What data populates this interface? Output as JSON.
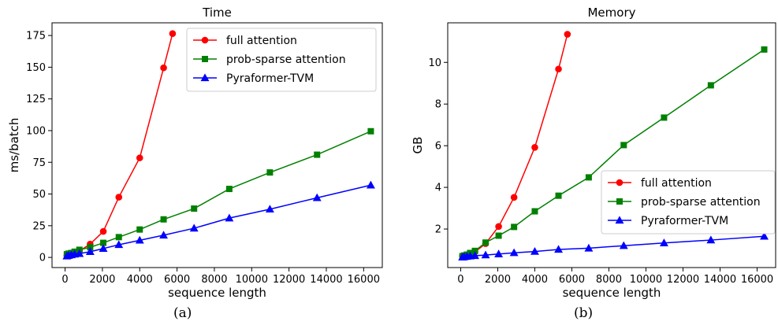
{
  "chart_data": [
    {
      "type": "line",
      "title": "Time",
      "xlabel": "sequence length",
      "ylabel": "ms/batch",
      "xlim": [
        -700,
        17000
      ],
      "ylim": [
        -8,
        185
      ],
      "xticks": [
        0,
        2000,
        4000,
        6000,
        8000,
        10000,
        12000,
        14000,
        16000
      ],
      "yticks": [
        0,
        25,
        50,
        75,
        100,
        125,
        150,
        175
      ],
      "legend_position": "top-right",
      "caption": "(a)",
      "series": [
        {
          "name": "full attention",
          "color": "#ff0000",
          "marker": "circle",
          "x": [
            96,
            192,
            336,
            512,
            768,
            1344,
            2048,
            2880,
            4000,
            5280,
            5760
          ],
          "y": [
            1.5,
            2,
            2.5,
            3.5,
            5,
            10.5,
            20.5,
            47.5,
            78.5,
            149.5,
            176.5
          ]
        },
        {
          "name": "prob-sparse attention",
          "color": "#008000",
          "marker": "square",
          "x": [
            96,
            192,
            336,
            512,
            768,
            1344,
            2048,
            2880,
            4000,
            5280,
            6912,
            8800,
            10976,
            13504,
            16384
          ],
          "y": [
            2.5,
            3,
            3.5,
            4.5,
            6,
            8,
            11.5,
            16,
            22,
            30,
            38.5,
            54,
            67,
            81,
            99.5
          ]
        },
        {
          "name": "Pyraformer-TVM",
          "color": "#0000ff",
          "marker": "triangle",
          "x": [
            96,
            192,
            336,
            512,
            768,
            1344,
            2048,
            2880,
            4000,
            5280,
            6912,
            8800,
            10976,
            13504,
            16384
          ],
          "y": [
            1,
            1.5,
            2,
            2.5,
            3,
            4.5,
            7,
            10,
            13.5,
            17.5,
            23,
            31,
            38,
            47,
            57
          ]
        }
      ]
    },
    {
      "type": "line",
      "title": "Memory",
      "xlabel": "sequence length",
      "ylabel": "GB",
      "xlim": [
        -700,
        17000
      ],
      "ylim": [
        0.15,
        11.9
      ],
      "xticks": [
        0,
        2000,
        4000,
        6000,
        8000,
        10000,
        12000,
        14000,
        16000
      ],
      "yticks": [
        2,
        4,
        6,
        8,
        10
      ],
      "legend_position": "lower-right",
      "caption": "(b)",
      "series": [
        {
          "name": "full attention",
          "color": "#ff0000",
          "marker": "circle",
          "x": [
            96,
            192,
            336,
            512,
            768,
            1344,
            2048,
            2880,
            4000,
            5280,
            5760
          ],
          "y": [
            0.7,
            0.72,
            0.76,
            0.82,
            0.9,
            1.3,
            2.12,
            3.52,
            5.92,
            9.68,
            11.35
          ]
        },
        {
          "name": "prob-sparse attention",
          "color": "#008000",
          "marker": "square",
          "x": [
            96,
            192,
            336,
            512,
            768,
            1344,
            2048,
            2880,
            4000,
            5280,
            6912,
            8800,
            10976,
            13504,
            16384
          ],
          "y": [
            0.7,
            0.73,
            0.77,
            0.85,
            0.95,
            1.35,
            1.68,
            2.1,
            2.85,
            3.6,
            4.48,
            6.03,
            7.35,
            8.9,
            10.62
          ]
        },
        {
          "name": "Pyraformer-TVM",
          "color": "#0000ff",
          "marker": "triangle",
          "x": [
            96,
            192,
            336,
            512,
            768,
            1344,
            2048,
            2880,
            4000,
            5280,
            6912,
            8800,
            10976,
            13504,
            16384
          ],
          "y": [
            0.65,
            0.66,
            0.68,
            0.7,
            0.72,
            0.75,
            0.8,
            0.86,
            0.92,
            1.02,
            1.08,
            1.2,
            1.33,
            1.47,
            1.65
          ]
        }
      ]
    }
  ]
}
